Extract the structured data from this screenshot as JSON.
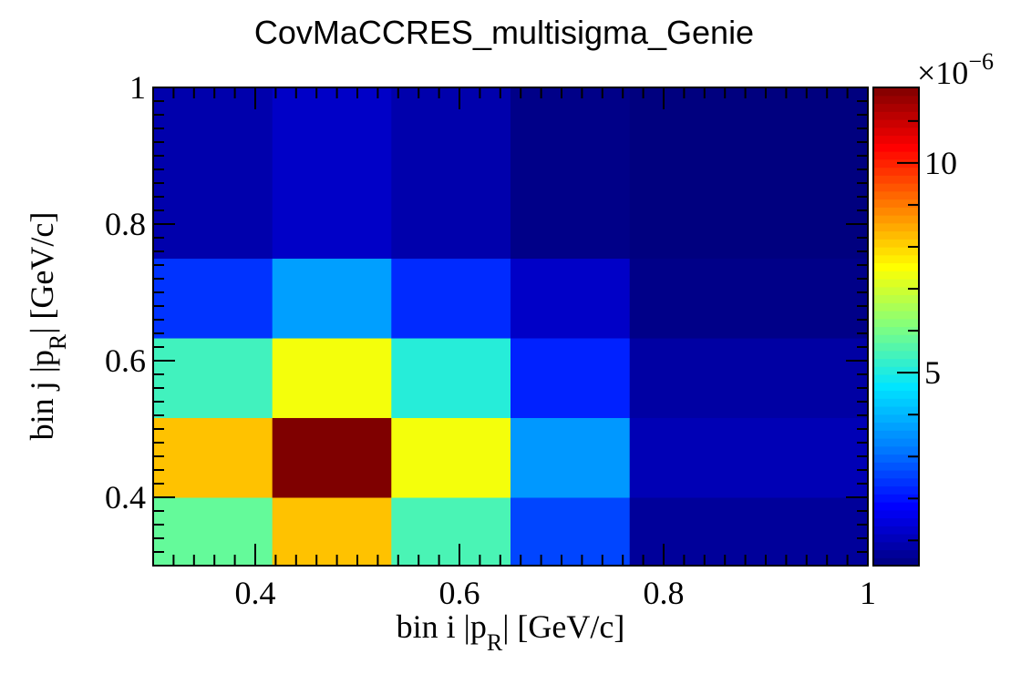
{
  "chart_data": {
    "type": "heatmap",
    "title": "CovMaCCRES_multisigma_Genie",
    "xlabel": {
      "prefix": "bin i |",
      "var": "p",
      "sub": "R",
      "suffix": "| [GeV/c]"
    },
    "ylabel": {
      "prefix": "bin j |",
      "var": "p",
      "sub": "R",
      "suffix": "| [GeV/c]"
    },
    "xlim": [
      0.3,
      1.0
    ],
    "ylim": [
      0.3,
      1.0
    ],
    "x_edges": [
      0.3,
      0.4167,
      0.5333,
      0.65,
      0.7667,
      1.0
    ],
    "y_edges": [
      0.3,
      0.4,
      0.5167,
      0.6333,
      0.75,
      1.0
    ],
    "x_ticks": [
      0.4,
      0.6,
      0.8,
      1.0
    ],
    "x_tick_labels": [
      "0.4",
      "0.6",
      "0.8",
      "1"
    ],
    "y_ticks": [
      0.4,
      0.6,
      0.8,
      1.0
    ],
    "y_tick_labels": [
      "0.4",
      "0.6",
      "0.8",
      "1"
    ],
    "z_scale_label": "×10",
    "z_scale_exponent": "−6",
    "z_units": 1e-06,
    "zlim": [
      0.4,
      11.8
    ],
    "z_ticks": [
      5,
      10
    ],
    "z_tick_labels": [
      "5",
      "10"
    ],
    "values": [
      [
        5.8,
        8.2,
        5.5,
        2.6,
        0.7
      ],
      [
        8.2,
        11.8,
        7.4,
        3.6,
        1.0
      ],
      [
        5.4,
        7.4,
        5.1,
        2.2,
        0.8
      ],
      [
        2.4,
        3.7,
        2.3,
        1.2,
        0.5
      ],
      [
        0.9,
        1.2,
        0.9,
        0.5,
        0.4
      ]
    ],
    "colormap": [
      "#00007f",
      "#0000ff",
      "#007fff",
      "#00e5ff",
      "#7fff7f",
      "#ffff00",
      "#ff7f00",
      "#ff0000",
      "#7f0000"
    ]
  }
}
